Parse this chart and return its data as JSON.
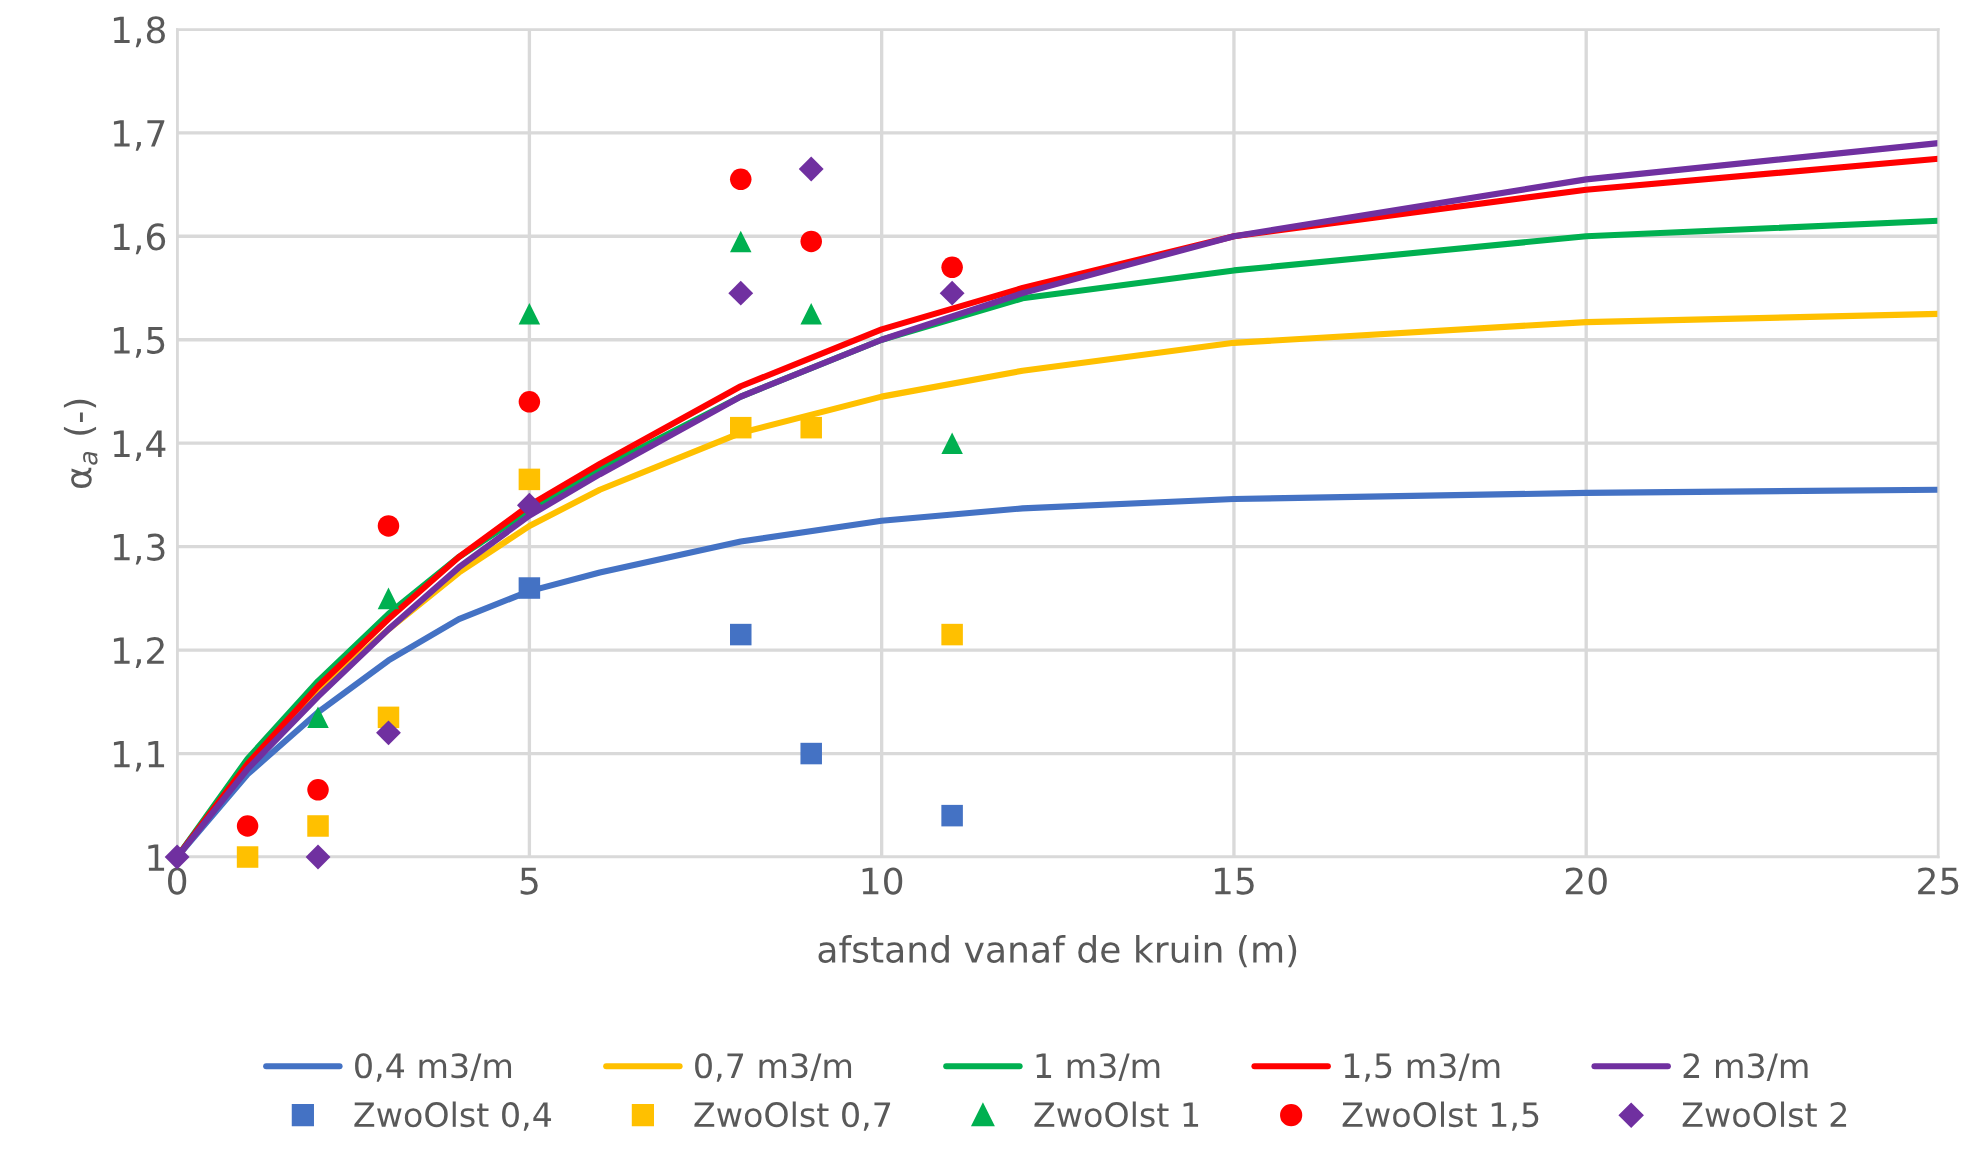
{
  "chart_data": {
    "type": "line",
    "xlabel": "afstand vanaf de kruin (m)",
    "ylabel": "α$_{a}$ (-)",
    "xlim": [
      0,
      25
    ],
    "xticks": [
      0,
      5,
      10,
      15,
      20,
      25
    ],
    "ylim": [
      1,
      1.8
    ],
    "yticks": [
      {
        "value": 1,
        "label": "1"
      },
      {
        "value": 1.1,
        "label": "1,1"
      },
      {
        "value": 1.2,
        "label": "1,2"
      },
      {
        "value": 1.3,
        "label": "1,3"
      },
      {
        "value": 1.4,
        "label": "1,4"
      },
      {
        "value": 1.5,
        "label": "1,5"
      },
      {
        "value": 1.6,
        "label": "1,6"
      },
      {
        "value": 1.7,
        "label": "1,7"
      },
      {
        "value": 1.8,
        "label": "1,8"
      }
    ],
    "grid": true,
    "legend": "bottom",
    "marker": "none",
    "line_style": "solid",
    "series": [
      {
        "name": "0,4 m3/m",
        "color": "#4472c4",
        "x": [
          0,
          1,
          2,
          3,
          4,
          5,
          6,
          8,
          10,
          12,
          15,
          20,
          25
        ],
        "values": [
          1,
          1.08,
          1.14,
          1.19,
          1.23,
          1.257,
          1.275,
          1.305,
          1.325,
          1.337,
          1.346,
          1.352,
          1.355
        ]
      },
      {
        "name": "0,7 m3/m",
        "color": "#ffc000",
        "x": [
          0,
          1,
          2,
          3,
          4,
          5,
          6,
          8,
          10,
          12,
          15,
          20,
          25
        ],
        "values": [
          1,
          1.09,
          1.16,
          1.22,
          1.275,
          1.32,
          1.355,
          1.41,
          1.445,
          1.47,
          1.497,
          1.517,
          1.525
        ]
      },
      {
        "name": "1 m3/m",
        "color": "#00b050",
        "x": [
          0,
          1,
          2,
          3,
          4,
          5,
          6,
          8,
          10,
          12,
          15,
          20,
          25
        ],
        "values": [
          1,
          1.095,
          1.17,
          1.235,
          1.29,
          1.335,
          1.375,
          1.445,
          1.5,
          1.54,
          1.567,
          1.6,
          1.615
        ]
      },
      {
        "name": "1,5 m3/m",
        "color": "#ff0000",
        "x": [
          0,
          1,
          2,
          3,
          4,
          5,
          6,
          8,
          10,
          12,
          15,
          20,
          25
        ],
        "values": [
          1,
          1.09,
          1.165,
          1.23,
          1.29,
          1.34,
          1.38,
          1.455,
          1.51,
          1.55,
          1.6,
          1.645,
          1.675
        ]
      },
      {
        "name": "2 m3/m",
        "color": "#7030a0",
        "x": [
          0,
          1,
          2,
          3,
          4,
          5,
          6,
          8,
          10,
          12,
          15,
          20,
          25
        ],
        "values": [
          1,
          1.085,
          1.155,
          1.22,
          1.28,
          1.33,
          1.37,
          1.445,
          1.5,
          1.545,
          1.6,
          1.655,
          1.69
        ]
      },
      {
        "name": "ZwoOlst 0,4",
        "type": "scatter",
        "marker": "square",
        "color": "#4472c4",
        "x": [
          5,
          8,
          9,
          11
        ],
        "values": [
          1.26,
          1.215,
          1.1,
          1.04
        ]
      },
      {
        "name": "ZwoOlst 0,7",
        "type": "scatter",
        "marker": "square",
        "color": "#ffc000",
        "x": [
          1,
          2,
          3,
          5,
          8,
          9,
          11
        ],
        "values": [
          1.0,
          1.03,
          1.135,
          1.365,
          1.415,
          1.415,
          1.215
        ]
      },
      {
        "name": "ZwoOlst 1",
        "type": "scatter",
        "marker": "triangle",
        "color": "#00b050",
        "x": [
          2,
          3,
          5,
          8,
          9,
          11
        ],
        "values": [
          1.135,
          1.25,
          1.525,
          1.595,
          1.525,
          1.4
        ]
      },
      {
        "name": "ZwoOlst 1,5",
        "type": "scatter",
        "marker": "circle",
        "color": "#ff0000",
        "x": [
          1,
          2,
          3,
          5,
          8,
          9,
          11
        ],
        "values": [
          1.03,
          1.065,
          1.32,
          1.44,
          1.655,
          1.595,
          1.57
        ]
      },
      {
        "name": "ZwoOlst 2",
        "type": "scatter",
        "marker": "diamond",
        "color": "#7030a0",
        "x": [
          0,
          2,
          3,
          5,
          8,
          9,
          11
        ],
        "values": [
          1,
          1.0,
          1.12,
          1.34,
          1.545,
          1.665,
          1.545
        ]
      }
    ]
  }
}
